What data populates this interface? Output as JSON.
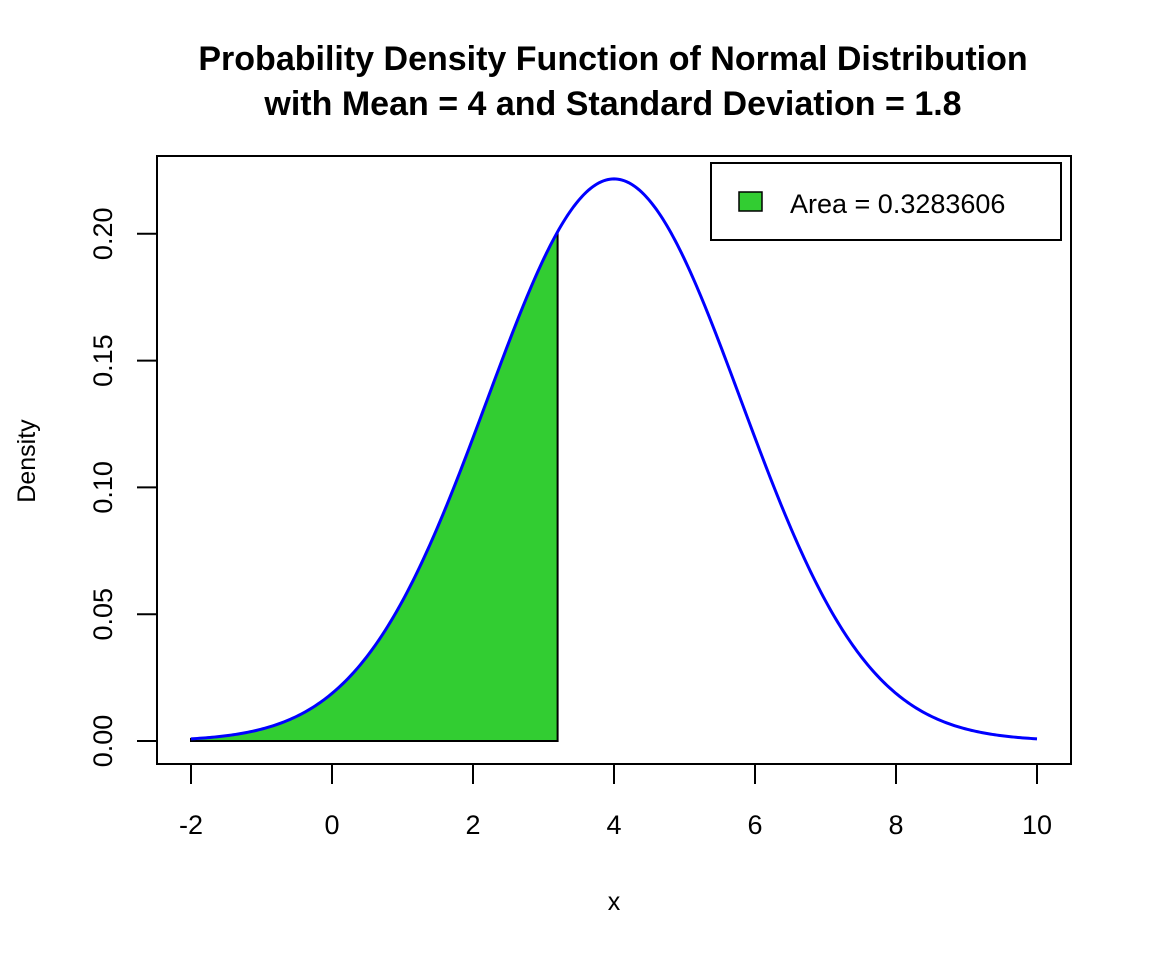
{
  "chart_data": {
    "type": "area",
    "title_line1": "Probability Density Function of Normal Distribution",
    "title_line2": "with Mean = 4 and Standard Deviation = 1.8",
    "xlabel": "x",
    "ylabel": "Density",
    "distribution": {
      "family": "normal",
      "mean": 4,
      "sd": 1.8
    },
    "xlim": [
      -2,
      10
    ],
    "ylim": [
      0,
      0.222
    ],
    "x_ticks": [
      -2,
      0,
      2,
      4,
      6,
      8,
      10
    ],
    "x_tick_labels": [
      "-2",
      "0",
      "2",
      "4",
      "6",
      "8",
      "10"
    ],
    "y_ticks": [
      0,
      0.05,
      0.1,
      0.15,
      0.2
    ],
    "y_tick_labels": [
      "0.00",
      "0.05",
      "0.10",
      "0.15",
      "0.20"
    ],
    "shaded_region": {
      "from": -2,
      "to": 3.2
    },
    "curve_color": "#0000ff",
    "fill_color": "#32cd32",
    "legend": {
      "label": "Area = 0.3283606",
      "placement": "top-right"
    },
    "grid": false
  }
}
